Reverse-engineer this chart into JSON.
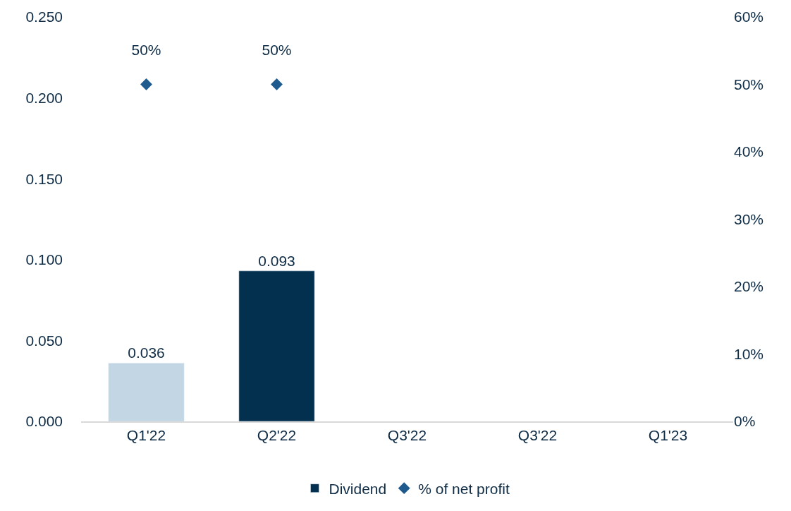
{
  "chart_data": {
    "type": "bar",
    "categories": [
      "Q1'22",
      "Q2'22",
      "Q3'22",
      "Q3'22",
      "Q1'23"
    ],
    "series": [
      {
        "name": "Dividend",
        "color": "#03304f",
        "colors": [
          "#c2d6e4",
          "#03304f",
          "#03304f",
          "#03304f",
          "#03304f"
        ],
        "values": [
          0.036,
          0.093,
          null,
          null,
          null
        ],
        "value_labels": [
          "0.036",
          "0.093",
          null,
          null,
          null
        ]
      },
      {
        "name": "% of net profit",
        "type": "scatter",
        "axis": "y2",
        "marker": "diamond",
        "color": "#1f5a8e",
        "values": [
          50,
          50,
          null,
          null,
          null
        ],
        "value_labels": [
          "50%",
          "50%",
          null,
          null,
          null
        ]
      }
    ],
    "ylim": [
      0,
      0.25
    ],
    "yticks": [
      {
        "value": 0,
        "label": "0.000"
      },
      {
        "value": 0.05,
        "label": "0.050"
      },
      {
        "value": 0.1,
        "label": "0.100"
      },
      {
        "value": 0.15,
        "label": "0.150"
      },
      {
        "value": 0.2,
        "label": "0.200"
      },
      {
        "value": 0.25,
        "label": "0.250"
      }
    ],
    "y2lim": [
      0,
      60
    ],
    "y2ticks": [
      {
        "value": 0,
        "label": "0%"
      },
      {
        "value": 10,
        "label": "10%"
      },
      {
        "value": 20,
        "label": "20%"
      },
      {
        "value": 30,
        "label": "30%"
      },
      {
        "value": 40,
        "label": "40%"
      },
      {
        "value": 50,
        "label": "50%"
      },
      {
        "value": 60,
        "label": "60%"
      }
    ],
    "legend": "bottom"
  }
}
